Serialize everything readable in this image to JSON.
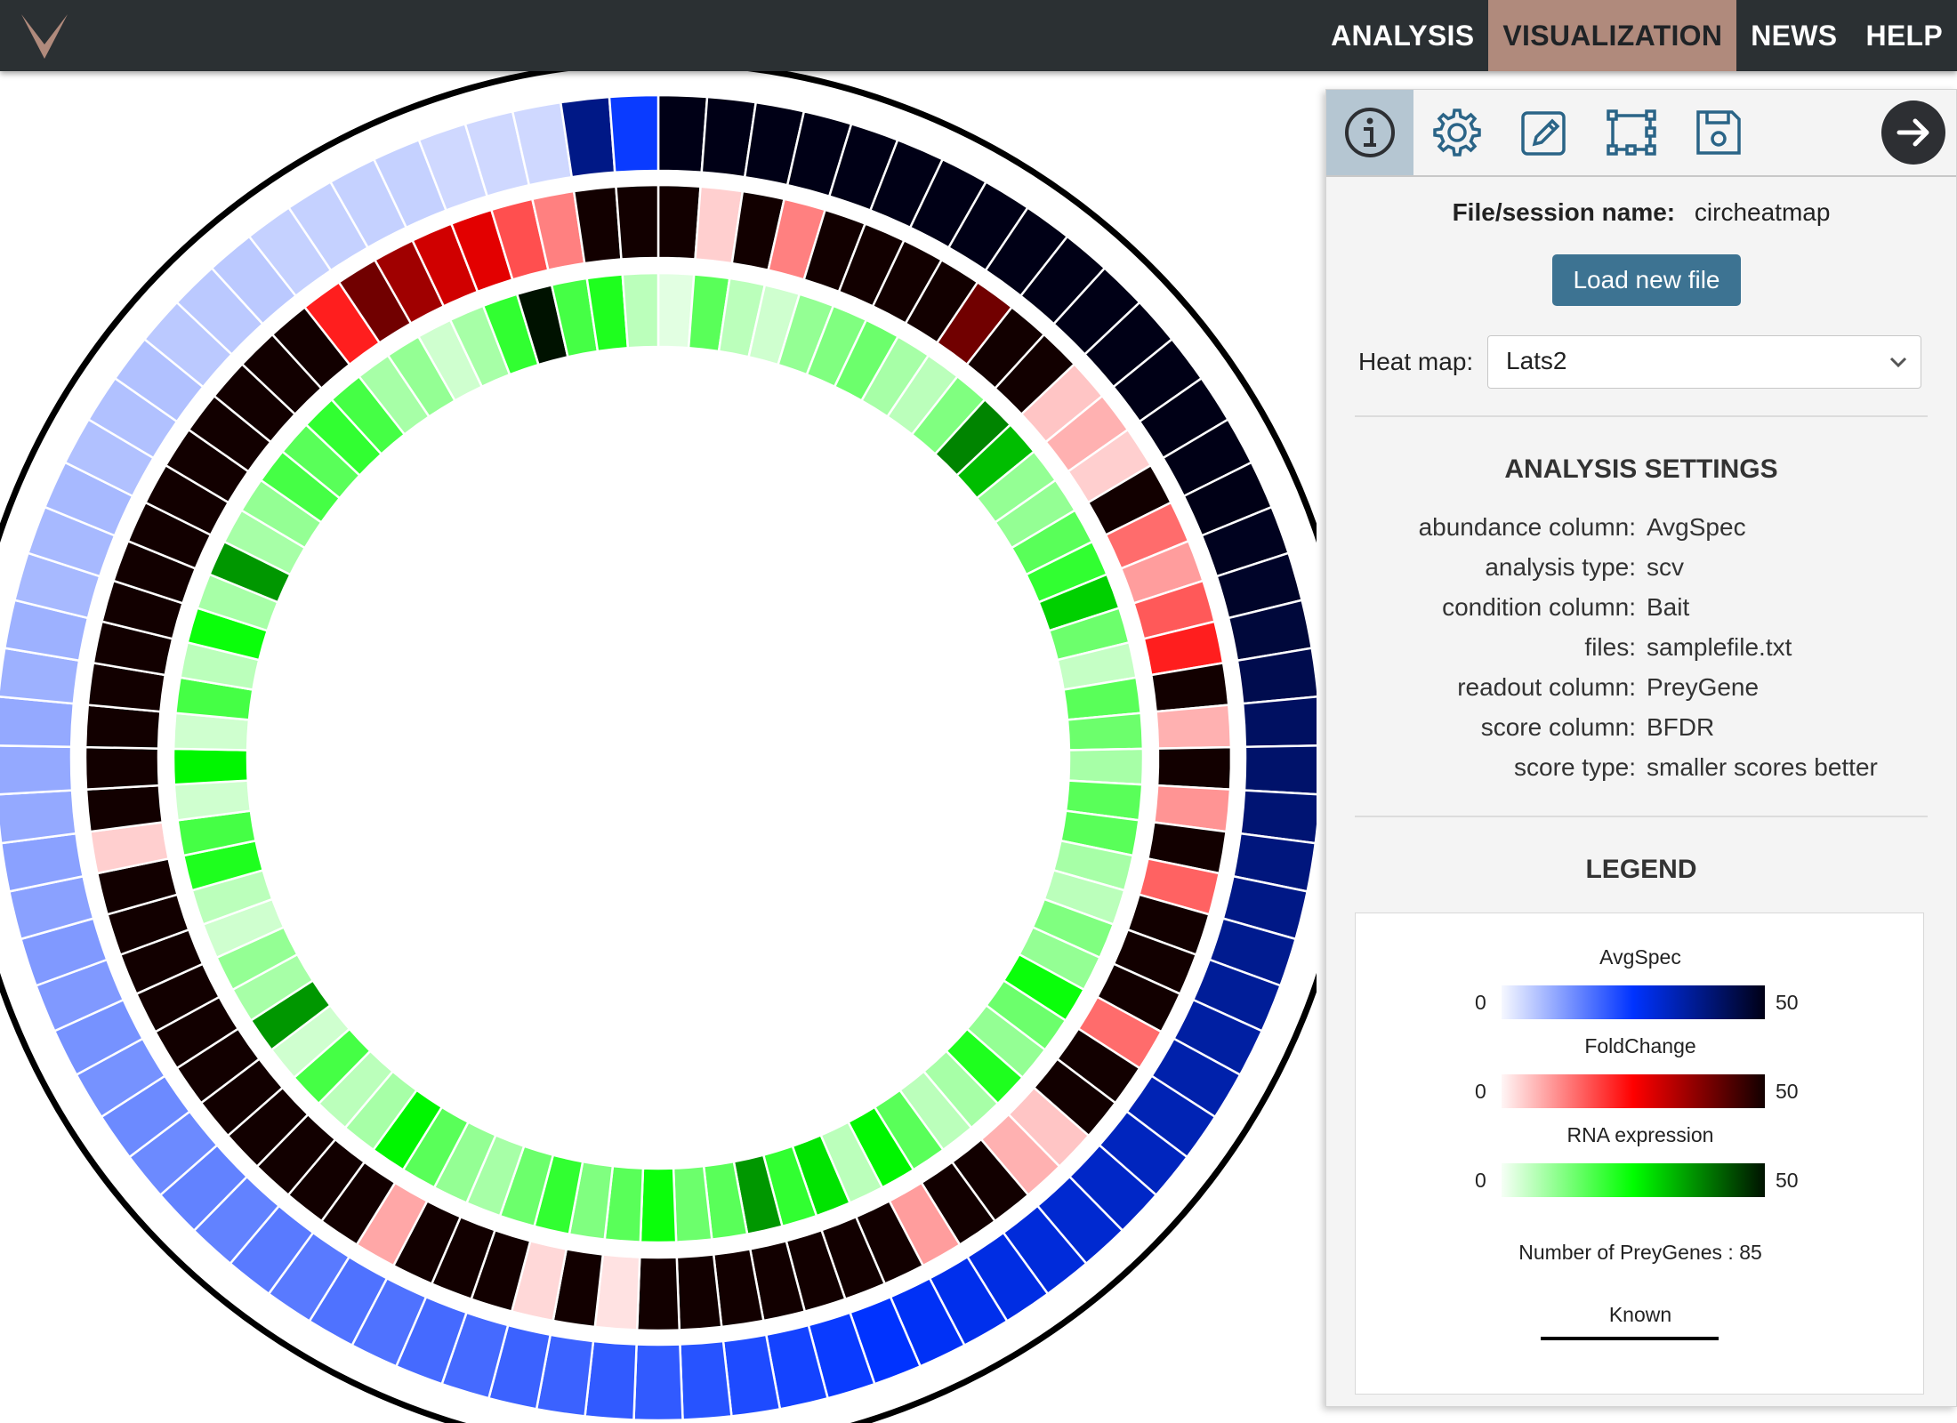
{
  "navbar": {
    "items": [
      {
        "label": "ANALYSIS",
        "active": false
      },
      {
        "label": "VISUALIZATION",
        "active": true
      },
      {
        "label": "NEWS",
        "active": false
      },
      {
        "label": "HELP",
        "active": false
      }
    ],
    "logo_color": "#b08a7c"
  },
  "panel": {
    "toolbar": [
      {
        "icon": "info-icon",
        "active": true
      },
      {
        "icon": "gear-icon",
        "active": false
      },
      {
        "icon": "pencil-icon",
        "active": false
      },
      {
        "icon": "selection-icon",
        "active": false
      },
      {
        "icon": "save-icon",
        "active": false
      }
    ],
    "collapse_icon": "arrow-right-icon",
    "file_label": "File/session name:",
    "file_value": "circheatmap",
    "load_button": "Load new file",
    "heatmap_label": "Heat map:",
    "heatmap_value": "Lats2",
    "analysis_title": "ANALYSIS SETTINGS",
    "settings": [
      {
        "key": "abundance column:",
        "value": "AvgSpec"
      },
      {
        "key": "analysis type:",
        "value": "scv"
      },
      {
        "key": "condition column:",
        "value": "Bait"
      },
      {
        "key": "files:",
        "value": "samplefile.txt"
      },
      {
        "key": "readout column:",
        "value": "PreyGene"
      },
      {
        "key": "score column:",
        "value": "BFDR"
      },
      {
        "key": "score type:",
        "value": "smaller scores better"
      }
    ],
    "legend_title": "LEGEND",
    "legend": {
      "scales": [
        {
          "name": "AvgSpec",
          "min": "0",
          "max": "50",
          "colors": [
            "#f6f8ff",
            "#0033ff",
            "#000016"
          ]
        },
        {
          "name": "FoldChange",
          "min": "0",
          "max": "50",
          "colors": [
            "#fff6f6",
            "#ff0000",
            "#120000"
          ]
        },
        {
          "name": "RNA expression",
          "min": "0",
          "max": "50",
          "colors": [
            "#f6fff6",
            "#00ff00",
            "#001200"
          ]
        }
      ],
      "count_text": "Number of PreyGenes : 85",
      "known_label": "Known"
    }
  },
  "chart_data": {
    "type": "heatmap",
    "layout": "circular",
    "segments": 85,
    "rings": [
      {
        "name": "AvgSpec",
        "values": [
          50,
          50,
          50,
          50,
          50,
          50,
          50,
          50,
          50,
          50,
          50,
          50,
          50,
          50,
          50,
          50,
          49,
          48,
          46,
          44,
          42,
          41,
          40,
          39,
          38,
          37,
          36,
          35,
          34,
          33,
          32,
          31,
          30,
          29,
          28,
          27,
          26,
          25,
          24,
          23,
          22,
          21,
          20,
          20,
          19,
          19,
          18,
          18,
          17,
          17,
          16,
          16,
          15,
          15,
          14,
          14,
          13,
          13,
          12,
          12,
          11,
          11,
          10,
          10,
          10,
          9,
          9,
          8,
          8,
          8,
          7,
          7,
          7,
          6,
          6,
          6,
          5,
          5,
          5,
          5,
          4,
          4,
          4,
          38,
          24
        ]
      },
      {
        "name": "FoldChange",
        "values": [
          50,
          4,
          50,
          12,
          50,
          50,
          50,
          50,
          40,
          50,
          50,
          5,
          7,
          4,
          50,
          14,
          9,
          16,
          22,
          50,
          7,
          50,
          10,
          50,
          15,
          50,
          50,
          50,
          14,
          50,
          50,
          5,
          7,
          50,
          50,
          9,
          50,
          50,
          50,
          50,
          50,
          50,
          50,
          2,
          50,
          3,
          50,
          50,
          50,
          8,
          50,
          50,
          50,
          50,
          50,
          50,
          50,
          50,
          50,
          50,
          50,
          4,
          50,
          50,
          50,
          50,
          50,
          50,
          50,
          50,
          50,
          50,
          50,
          50,
          50,
          50,
          22,
          40,
          35,
          30,
          28,
          17,
          12,
          50,
          50
        ]
      },
      {
        "name": "RNA expression",
        "values": [
          2,
          16,
          6,
          4,
          10,
          12,
          14,
          8,
          6,
          12,
          38,
          32,
          10,
          10,
          16,
          20,
          30,
          14,
          5,
          16,
          14,
          8,
          16,
          16,
          8,
          6,
          12,
          10,
          24,
          14,
          10,
          22,
          8,
          6,
          16,
          26,
          6,
          28,
          20,
          36,
          16,
          14,
          24,
          16,
          12,
          20,
          14,
          8,
          10,
          16,
          26,
          8,
          6,
          18,
          4,
          36,
          8,
          10,
          4,
          6,
          22,
          18,
          4,
          26,
          4,
          18,
          6,
          24,
          8,
          36,
          8,
          10,
          18,
          16,
          20,
          18,
          8,
          10,
          4,
          8,
          20,
          50,
          18,
          22,
          6
        ]
      }
    ],
    "known_arcs": [
      [
        0,
        66
      ],
      [
        68,
        85
      ]
    ]
  }
}
